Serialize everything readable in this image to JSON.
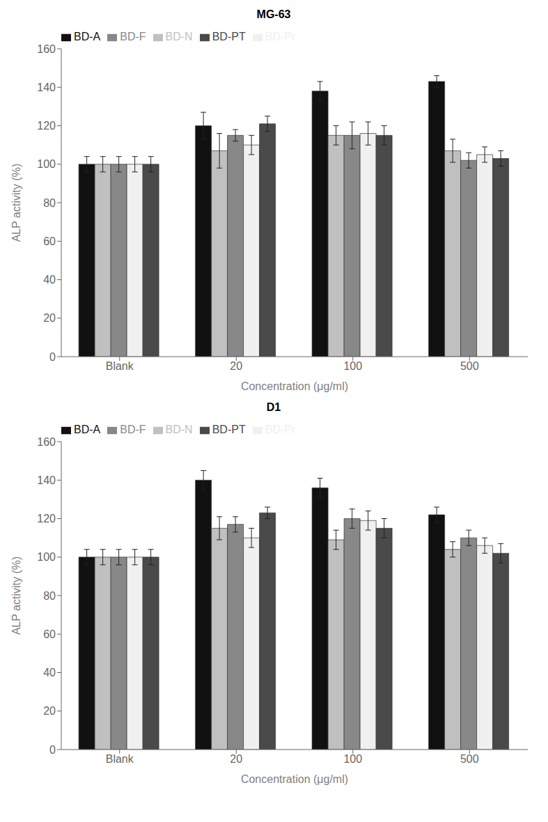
{
  "chart_data": [
    {
      "type": "bar",
      "title": "MG-63",
      "xlabel": "Concentration (μg/ml)",
      "ylabel": "ALP activity (%)",
      "categories": [
        "Blank",
        "20",
        "100",
        "500"
      ],
      "series": [
        {
          "name": "BD-A",
          "color": "#111111",
          "values": [
            100,
            120,
            138,
            143
          ],
          "errors": [
            4,
            7,
            5,
            3
          ]
        },
        {
          "name": "BD-N",
          "color": "#c0c0c0",
          "values": [
            100,
            107,
            115,
            107
          ],
          "errors": [
            4,
            9,
            5,
            6
          ]
        },
        {
          "name": "BD-F",
          "color": "#888888",
          "values": [
            100,
            115,
            115,
            102
          ],
          "errors": [
            4,
            3,
            7,
            4
          ]
        },
        {
          "name": "BD-Pr",
          "color": "#f0f0f0",
          "values": [
            100,
            110,
            116,
            105
          ],
          "errors": [
            4,
            5,
            6,
            4
          ]
        },
        {
          "name": "BD-PT",
          "color": "#4a4a4a",
          "values": [
            100,
            121,
            115,
            103
          ],
          "errors": [
            4,
            4,
            5,
            4
          ]
        }
      ],
      "ylim": [
        0,
        160
      ],
      "yticks": [
        0,
        20,
        40,
        60,
        80,
        100,
        120,
        140,
        160
      ],
      "grid": false,
      "legend": "upper left"
    },
    {
      "type": "bar",
      "title": "D1",
      "xlabel": "Concentration (μg/ml)",
      "ylabel": "ALP activity (%)",
      "categories": [
        "Blank",
        "20",
        "100",
        "500"
      ],
      "series": [
        {
          "name": "BD-A",
          "color": "#111111",
          "values": [
            100,
            140,
            136,
            122
          ],
          "errors": [
            4,
            5,
            5,
            4
          ]
        },
        {
          "name": "BD-N",
          "color": "#c0c0c0",
          "values": [
            100,
            115,
            109,
            104
          ],
          "errors": [
            4,
            6,
            5,
            4
          ]
        },
        {
          "name": "BD-F",
          "color": "#888888",
          "values": [
            100,
            117,
            120,
            110
          ],
          "errors": [
            4,
            4,
            5,
            4
          ]
        },
        {
          "name": "BD-Pr",
          "color": "#f0f0f0",
          "values": [
            100,
            110,
            119,
            106
          ],
          "errors": [
            4,
            5,
            5,
            4
          ]
        },
        {
          "name": "BD-PT",
          "color": "#4a4a4a",
          "values": [
            100,
            123,
            115,
            102
          ],
          "errors": [
            4,
            3,
            5,
            5
          ]
        }
      ],
      "ylim": [
        0,
        160
      ],
      "yticks": [
        0,
        20,
        40,
        60,
        80,
        100,
        120,
        140,
        160
      ],
      "grid": false,
      "legend": "upper left"
    }
  ]
}
